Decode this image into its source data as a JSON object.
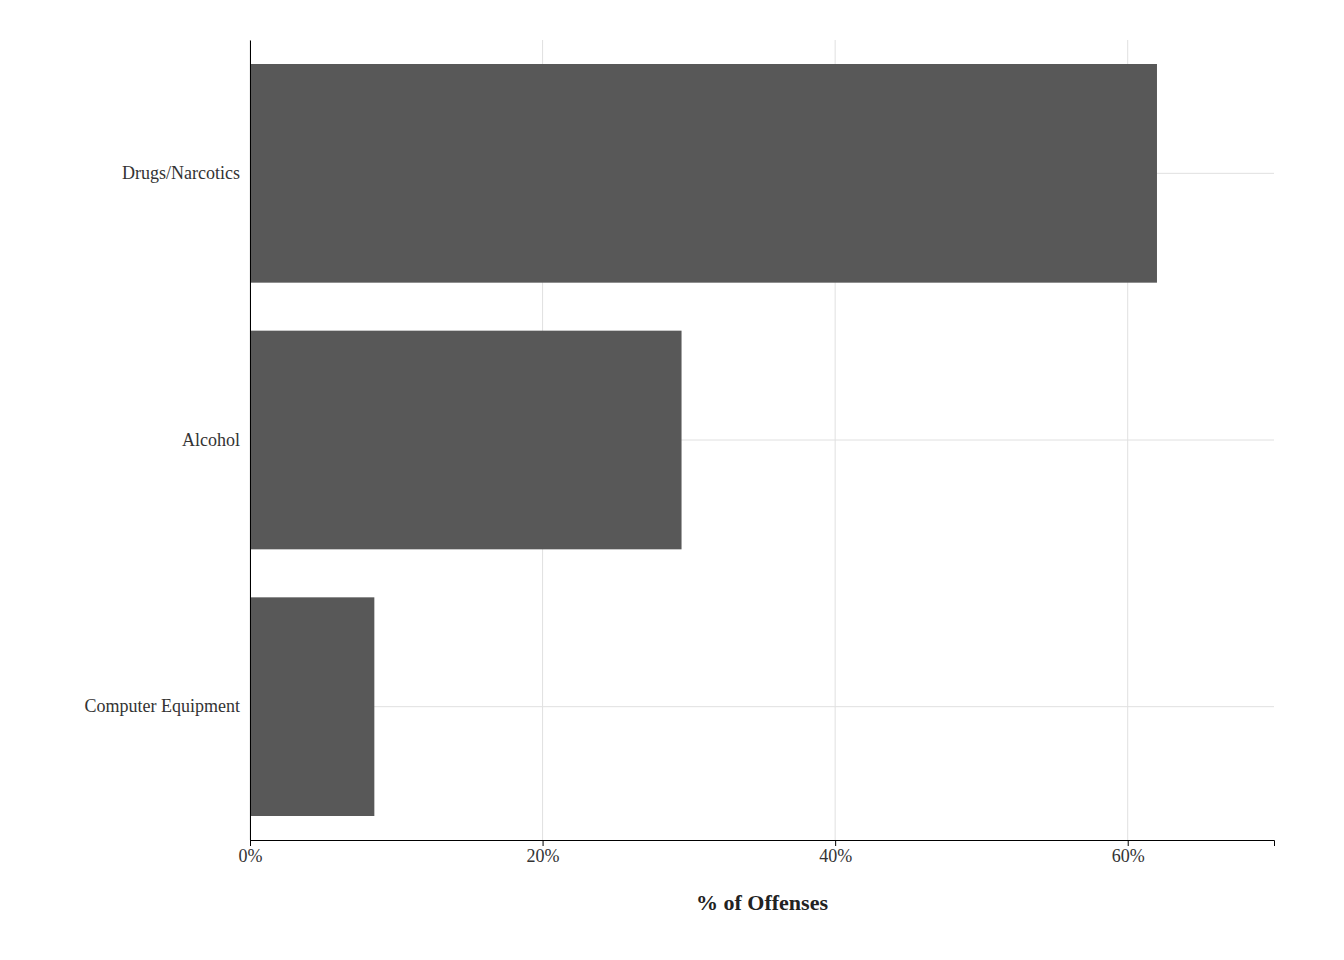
{
  "chart_data": {
    "type": "bar",
    "orientation": "horizontal",
    "categories": [
      "Computer Equipment",
      "Alcohol",
      "Drugs/Narcotics"
    ],
    "values": [
      0.085,
      0.295,
      0.62
    ],
    "color": "#585858",
    "xlabel": "% of Offenses",
    "xlim": [
      0,
      0.7
    ],
    "xticks": [
      {
        "value": 0.0,
        "label": "0%"
      },
      {
        "value": 0.2,
        "label": "20%"
      },
      {
        "value": 0.4,
        "label": "40%"
      },
      {
        "value": 0.6,
        "label": "60%"
      }
    ],
    "grid": true
  }
}
